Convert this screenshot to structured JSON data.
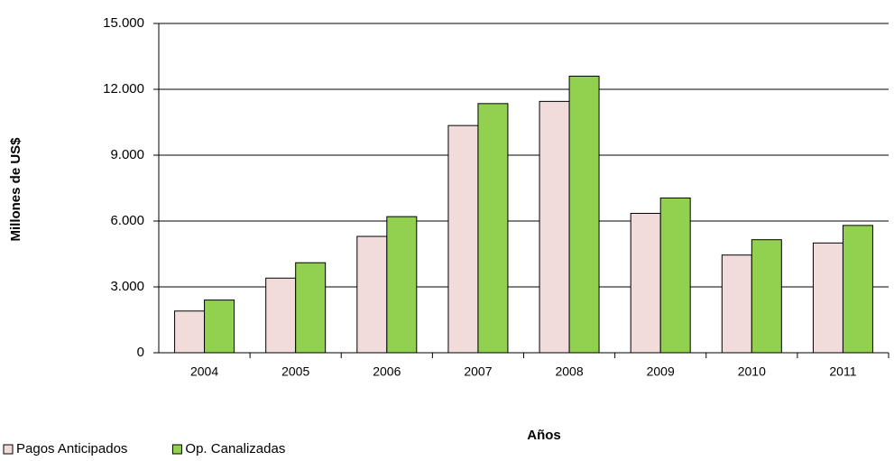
{
  "chart_data": {
    "type": "bar",
    "x_label": "Años",
    "y_label": "Millones de US$",
    "categories": [
      "2004",
      "2005",
      "2006",
      "2007",
      "2008",
      "2009",
      "2010",
      "2011"
    ],
    "series": [
      {
        "name": "Pagos Anticipados",
        "color": "#f2dcdb",
        "values": [
          1900,
          3400,
          5300,
          10350,
          11450,
          6350,
          4450,
          5000
        ]
      },
      {
        "name": "Op. Canalizadas",
        "color": "#92d050",
        "values": [
          2400,
          4100,
          6200,
          11350,
          12600,
          7050,
          5150,
          5800
        ]
      }
    ],
    "ylim": [
      0,
      15000
    ],
    "yticks": [
      {
        "value": 0,
        "label": "0"
      },
      {
        "value": 3000,
        "label": "3.000"
      },
      {
        "value": 6000,
        "label": "6.000"
      },
      {
        "value": 9000,
        "label": "9.000"
      },
      {
        "value": 12000,
        "label": "12.000"
      },
      {
        "value": 15000,
        "label": "15.000"
      }
    ],
    "grid": true,
    "legend": "bottom-left"
  }
}
